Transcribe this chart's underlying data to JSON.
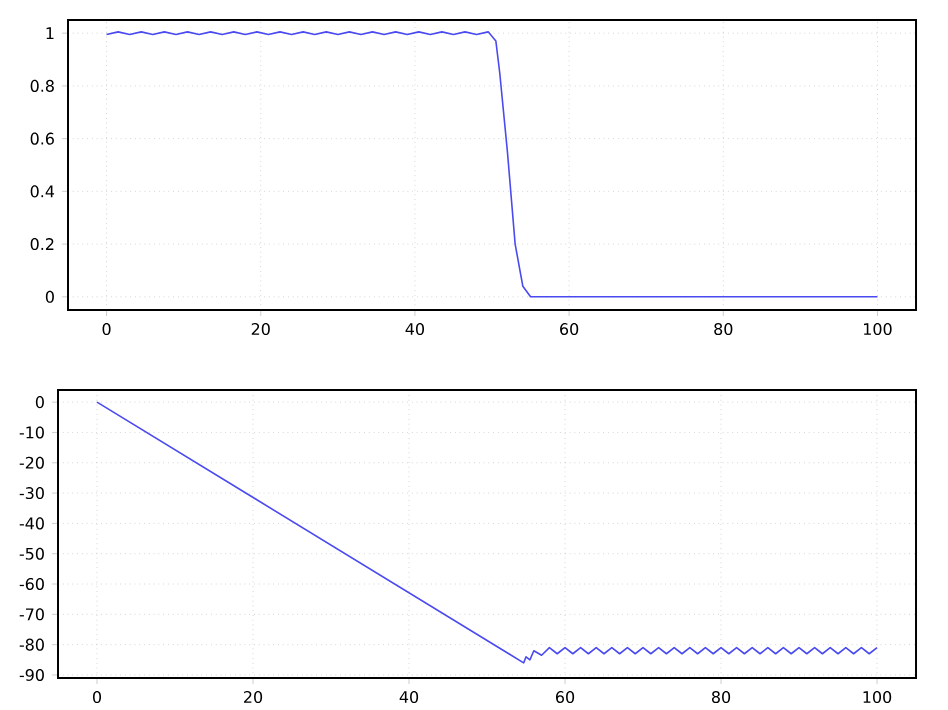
{
  "chart_data": [
    {
      "type": "line",
      "x": [
        0,
        1.5,
        3,
        4.5,
        6,
        7.5,
        9,
        10.5,
        12,
        13.5,
        15,
        16.5,
        18,
        19.5,
        21,
        22.5,
        24,
        25.5,
        27,
        28.5,
        30,
        31.5,
        33,
        34.5,
        36,
        37.5,
        39,
        40.5,
        42,
        43.5,
        45,
        46.5,
        48,
        49.5,
        50.5,
        51,
        52,
        53,
        54,
        55,
        70,
        85,
        100
      ],
      "series": [
        {
          "color": "#4a4af0",
          "values": [
            0.995,
            1.005,
            0.995,
            1.005,
            0.995,
            1.005,
            0.995,
            1.005,
            0.995,
            1.005,
            0.995,
            1.005,
            0.995,
            1.005,
            0.995,
            1.005,
            0.995,
            1.005,
            0.995,
            1.005,
            0.995,
            1.005,
            0.995,
            1.005,
            0.995,
            1.005,
            0.995,
            1.005,
            0.995,
            1.005,
            0.995,
            1.005,
            0.995,
            1.005,
            0.97,
            0.85,
            0.55,
            0.2,
            0.04,
            0,
            0,
            0,
            0
          ]
        }
      ],
      "xlim": [
        -5,
        105
      ],
      "ylim": [
        -0.05,
        1.05
      ],
      "xticks": [
        0,
        20,
        40,
        60,
        80,
        100
      ],
      "yticks": [
        0,
        0.2,
        0.4,
        0.6,
        0.8,
        1
      ],
      "grid": true,
      "marker": "none",
      "line_style": "solid"
    },
    {
      "type": "line",
      "x": [
        0,
        54.7,
        55,
        55.5,
        56,
        57,
        58,
        59,
        60,
        61,
        62,
        63,
        64,
        65,
        66,
        67,
        68,
        69,
        70,
        71,
        72,
        73,
        74,
        75,
        76,
        77,
        78,
        79,
        80,
        81,
        82,
        83,
        84,
        85,
        86,
        87,
        88,
        89,
        90,
        91,
        92,
        93,
        94,
        95,
        96,
        97,
        98,
        99,
        100
      ],
      "series": [
        {
          "color": "#4a4af0",
          "values": [
            0,
            -86,
            -84,
            -85,
            -82,
            -83.5,
            -81,
            -83,
            -81,
            -83,
            -81,
            -83,
            -81,
            -83,
            -81,
            -83,
            -81,
            -83,
            -81,
            -83,
            -81,
            -83,
            -81,
            -83,
            -81,
            -83,
            -81,
            -83,
            -81,
            -83,
            -81,
            -83,
            -81,
            -83,
            -81,
            -83,
            -81,
            -83,
            -81,
            -83,
            -81,
            -83,
            -81,
            -83,
            -81,
            -83,
            -81,
            -83,
            -81
          ]
        }
      ],
      "xlim": [
        -5,
        105
      ],
      "ylim": [
        -91,
        4
      ],
      "xticks": [
        0,
        20,
        40,
        60,
        80,
        100
      ],
      "yticks": [
        0,
        -10,
        -20,
        -30,
        -40,
        -50,
        -60,
        -70,
        -80,
        -90
      ],
      "grid": true,
      "marker": "none",
      "line_style": "solid"
    }
  ]
}
